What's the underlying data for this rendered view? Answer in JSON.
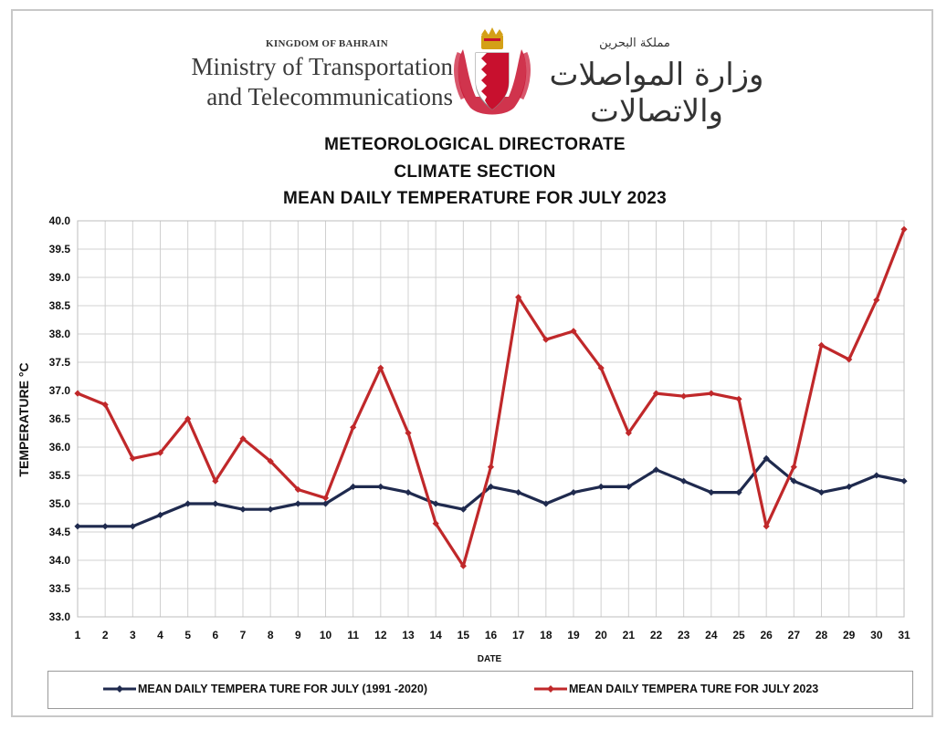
{
  "header": {
    "kingdom": "KINGDOM OF BAHRAIN",
    "ministry_line1": "Ministry of Transportation",
    "ministry_line2": "and Telecommunications",
    "arabic_kingdom": "مملكة البحرين",
    "arabic_ministry": "وزارة المواصلات والاتصالات"
  },
  "colors": {
    "normal_series": "#1f2a4e",
    "series_2023": "#c0282a",
    "grid": "#d0d0d0",
    "emblem_red": "#c8102e",
    "emblem_gold": "#d4a017"
  },
  "chart_data": {
    "type": "line",
    "title_lines": [
      "METEOROLOGICAL DIRECTORATE",
      "CLIMATE SECTION",
      "MEAN DAILY TEMPERATURE  FOR JULY 2023"
    ],
    "xlabel": "DATE",
    "ylabel": "TEMPERATURE °C",
    "categories": [
      1,
      2,
      3,
      4,
      5,
      6,
      7,
      8,
      9,
      10,
      11,
      12,
      13,
      14,
      15,
      16,
      17,
      18,
      19,
      20,
      21,
      22,
      23,
      24,
      25,
      26,
      27,
      28,
      29,
      30,
      31
    ],
    "ylim": [
      33.0,
      40.0
    ],
    "ytick_step": 0.5,
    "ytick_labels": [
      "33.0",
      "33.5",
      "34.0",
      "34.5",
      "35.0",
      "35.5",
      "36.0",
      "36.5",
      "37.0",
      "37.5",
      "38.0",
      "38.5",
      "39.0",
      "39.5",
      "40.0"
    ],
    "grid": true,
    "legend_placement": "bottom",
    "series": [
      {
        "name": "MEAN DAILY TEMPERA TURE FOR JULY (1991 -2020)",
        "color": "#1f2a4e",
        "values": [
          34.6,
          34.6,
          34.6,
          34.8,
          35.0,
          35.0,
          34.9,
          34.9,
          35.0,
          35.0,
          35.3,
          35.3,
          35.2,
          35.0,
          34.9,
          35.3,
          35.2,
          35.0,
          35.2,
          35.3,
          35.3,
          35.6,
          35.4,
          35.2,
          35.2,
          35.8,
          35.4,
          35.2,
          35.3,
          35.5,
          35.4
        ]
      },
      {
        "name": "MEAN DAILY TEMPERA TURE FOR JULY 2023",
        "color": "#c0282a",
        "values": [
          36.95,
          36.75,
          35.8,
          35.9,
          36.5,
          35.4,
          36.15,
          35.75,
          35.25,
          35.1,
          36.35,
          37.4,
          36.25,
          34.65,
          33.9,
          35.65,
          38.65,
          37.9,
          38.05,
          37.4,
          36.25,
          36.95,
          36.9,
          36.95,
          36.85,
          34.6,
          35.65,
          37.8,
          37.55,
          38.6,
          39.85
        ]
      }
    ]
  }
}
